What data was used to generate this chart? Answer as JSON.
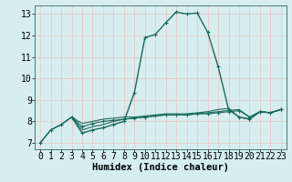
{
  "background_color": "#d6eeee",
  "grid_color": "#e8c8c8",
  "line_color": "#1a6b5a",
  "marker_color": "#1a6b5a",
  "xlabel": "Humidex (Indice chaleur)",
  "xlim": [
    -0.5,
    23.5
  ],
  "ylim": [
    6.7,
    13.4
  ],
  "xticks": [
    0,
    1,
    2,
    3,
    4,
    5,
    6,
    7,
    8,
    9,
    10,
    11,
    12,
    13,
    14,
    15,
    16,
    17,
    18,
    19,
    20,
    21,
    22,
    23
  ],
  "yticks": [
    7,
    8,
    9,
    10,
    11,
    12,
    13
  ],
  "lines": [
    {
      "x": [
        0,
        1,
        2,
        3,
        4,
        5,
        6,
        7,
        8,
        9,
        10,
        11,
        12,
        13,
        14,
        15,
        16,
        17,
        18,
        19,
        20,
        21,
        22,
        23
      ],
      "y": [
        7.0,
        7.6,
        7.85,
        8.2,
        7.45,
        7.6,
        7.7,
        7.85,
        8.0,
        9.35,
        11.9,
        12.05,
        12.6,
        13.1,
        13.0,
        13.05,
        12.15,
        10.55,
        8.55,
        8.2,
        8.1,
        8.45,
        8.4,
        8.55
      ],
      "marker": true,
      "lw": 1.0
    },
    {
      "x": [
        0,
        1,
        2,
        3,
        4,
        5,
        6,
        7,
        8,
        9,
        10,
        11,
        12,
        13,
        14,
        15,
        16,
        17,
        18,
        19,
        20,
        21,
        22,
        23
      ],
      "y": [
        7.0,
        7.6,
        7.85,
        8.2,
        7.9,
        8.0,
        8.1,
        8.15,
        8.2,
        8.2,
        8.25,
        8.3,
        8.35,
        8.35,
        8.35,
        8.4,
        8.45,
        8.55,
        8.6,
        8.2,
        8.1,
        8.45,
        8.4,
        8.55
      ],
      "marker": false,
      "lw": 0.8
    },
    {
      "x": [
        3,
        4,
        5,
        6,
        7,
        8,
        9,
        10,
        11,
        12,
        13,
        14,
        15,
        16,
        17,
        18,
        19,
        20,
        21,
        22,
        23
      ],
      "y": [
        8.2,
        7.75,
        7.9,
        8.0,
        8.05,
        8.1,
        8.15,
        8.2,
        8.25,
        8.3,
        8.3,
        8.3,
        8.35,
        8.35,
        8.4,
        8.45,
        8.5,
        8.2,
        8.45,
        8.4,
        8.55
      ],
      "marker": true,
      "lw": 0.8
    },
    {
      "x": [
        3,
        4,
        5,
        6,
        7,
        8,
        9,
        10,
        11,
        12,
        13,
        14,
        15,
        16,
        17,
        18,
        19,
        20,
        21,
        22,
        23
      ],
      "y": [
        8.2,
        7.6,
        7.75,
        7.85,
        8.0,
        8.1,
        8.15,
        8.2,
        8.25,
        8.3,
        8.3,
        8.3,
        8.35,
        8.4,
        8.45,
        8.5,
        8.55,
        8.2,
        8.45,
        8.4,
        8.55
      ],
      "marker": false,
      "lw": 0.8
    }
  ],
  "font_family": "monospace",
  "xlabel_fontsize": 7.5,
  "tick_fontsize": 7.0
}
